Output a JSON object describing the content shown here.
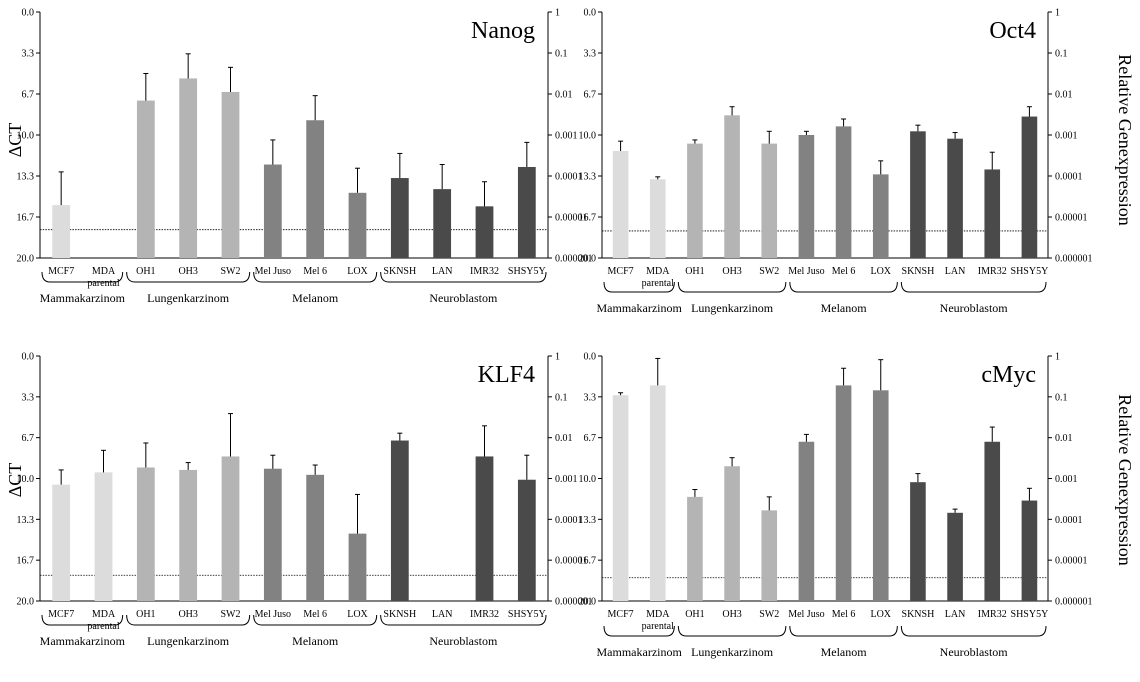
{
  "y_axis_title": "ΔCT",
  "y2_axis_title": "Relative Genexpression",
  "colors": {
    "Mammakarzinom": "#dcdcdc",
    "Lungenkarzinom": "#b4b4b4",
    "Melanom": "#828282",
    "Neuroblastom": "#4a4a4a",
    "error_bar": "#000000",
    "threshold": "#000000"
  },
  "chart_data": [
    {
      "type": "bar",
      "title": "Nanog",
      "categories": [
        "MCF7",
        "MDA parental",
        "OH1",
        "OH3",
        "SW2",
        "Mel Juso",
        "Mel 6",
        "LOX",
        "SKNSH",
        "LAN",
        "IMR32",
        "SHSY5Y"
      ],
      "values": [
        15.7,
        null,
        7.2,
        5.4,
        6.5,
        12.4,
        8.8,
        14.7,
        13.5,
        14.4,
        15.8,
        12.6
      ],
      "errors": [
        2.7,
        null,
        2.2,
        2.0,
        2.0,
        2.0,
        2.0,
        2.0,
        2.0,
        2.0,
        2.0,
        2.0
      ],
      "groups": [
        "Mammakarzinom",
        "Mammakarzinom",
        "Lungenkarzinom",
        "Lungenkarzinom",
        "Lungenkarzinom",
        "Melanom",
        "Melanom",
        "Melanom",
        "Neuroblastom",
        "Neuroblastom",
        "Neuroblastom",
        "Neuroblastom"
      ],
      "group_labels": [
        "Mammakarzinom",
        "Lungenkarzinom",
        "Melanom",
        "Neuroblastom"
      ],
      "ylim": [
        20.0,
        0.0
      ],
      "y_ticks": [
        "0.0",
        "3.3",
        "6.7",
        "10.0",
        "13.3",
        "16.7",
        "20.0"
      ],
      "y2_ticks": [
        "1",
        "0.1",
        "0.01",
        "0.001",
        "0.0001",
        "0.00001",
        "0.000001"
      ],
      "threshold": 17.7,
      "grid": false
    },
    {
      "type": "bar",
      "title": "Oct4",
      "categories": [
        "MCF7",
        "MDA parental",
        "OH1",
        "OH3",
        "SW2",
        "Mel Juso",
        "Mel 6",
        "LOX",
        "SKNSH",
        "LAN",
        "IMR32",
        "SHSY5Y"
      ],
      "values": [
        11.3,
        13.6,
        10.7,
        8.4,
        10.7,
        10.0,
        9.3,
        13.2,
        9.7,
        10.3,
        12.8,
        8.5
      ],
      "errors": [
        0.8,
        0.2,
        0.3,
        0.7,
        1.0,
        0.3,
        0.6,
        1.1,
        0.5,
        0.5,
        1.4,
        0.8
      ],
      "groups": [
        "Mammakarzinom",
        "Mammakarzinom",
        "Lungenkarzinom",
        "Lungenkarzinom",
        "Lungenkarzinom",
        "Melanom",
        "Melanom",
        "Melanom",
        "Neuroblastom",
        "Neuroblastom",
        "Neuroblastom",
        "Neuroblastom"
      ],
      "group_labels": [
        "Mammakarzinom",
        "Lungenkarzinom",
        "Melanom",
        "Neuroblastom"
      ],
      "ylim": [
        20.0,
        0.0
      ],
      "y_ticks": [
        "0.0",
        "3.3",
        "6.7",
        "10.0",
        "13.3",
        "16.7",
        "20.0"
      ],
      "y2_ticks": [
        "1",
        "0.1",
        "0.01",
        "0.001",
        "0.0001",
        "0.00001",
        "0.000001"
      ],
      "threshold": 17.8,
      "grid": false
    },
    {
      "type": "bar",
      "title": "KLF4",
      "categories": [
        "MCF7",
        "MDA parental",
        "OH1",
        "OH3",
        "SW2",
        "Mel Juso",
        "Mel 6",
        "LOX",
        "SKNSH",
        "LAN",
        "IMR32",
        "SHSY5Y"
      ],
      "values": [
        10.5,
        9.5,
        9.1,
        9.3,
        8.2,
        9.2,
        9.7,
        14.5,
        6.9,
        null,
        8.2,
        10.1
      ],
      "errors": [
        1.2,
        1.8,
        2.0,
        0.6,
        3.5,
        1.1,
        0.8,
        3.2,
        0.6,
        null,
        2.5,
        2.0
      ],
      "groups": [
        "Mammakarzinom",
        "Mammakarzinom",
        "Lungenkarzinom",
        "Lungenkarzinom",
        "Lungenkarzinom",
        "Melanom",
        "Melanom",
        "Melanom",
        "Neuroblastom",
        "Neuroblastom",
        "Neuroblastom",
        "Neuroblastom"
      ],
      "group_labels": [
        "Mammakarzinom",
        "Lungenkarzinom",
        "Melanom",
        "Neuroblastom"
      ],
      "ylim": [
        20.0,
        0.0
      ],
      "y_ticks": [
        "0.0",
        "3.3",
        "6.7",
        "10.0",
        "13.3",
        "16.7",
        "20.0"
      ],
      "y2_ticks": [
        "1",
        "0.1",
        "0.01",
        "0.001",
        "0.0001",
        "0.00001",
        "0.000001"
      ],
      "threshold": 17.9,
      "grid": false
    },
    {
      "type": "bar",
      "title": "cMyc",
      "categories": [
        "MCF7",
        "MDA parental",
        "OH1",
        "OH3",
        "SW2",
        "Mel Juso",
        "Mel 6",
        "LOX",
        "SKNSH",
        "LAN",
        "IMR32",
        "SHSY5Y"
      ],
      "values": [
        3.2,
        2.4,
        11.5,
        9.0,
        12.6,
        7.0,
        2.4,
        2.8,
        10.3,
        12.8,
        7.0,
        11.8
      ],
      "errors": [
        0.2,
        2.2,
        0.6,
        0.7,
        1.1,
        0.6,
        1.4,
        2.5,
        0.7,
        0.3,
        1.2,
        1.0
      ],
      "groups": [
        "Mammakarzinom",
        "Mammakarzinom",
        "Lungenkarzinom",
        "Lungenkarzinom",
        "Lungenkarzinom",
        "Melanom",
        "Melanom",
        "Melanom",
        "Neuroblastom",
        "Neuroblastom",
        "Neuroblastom",
        "Neuroblastom"
      ],
      "group_labels": [
        "Mammakarzinom",
        "Lungenkarzinom",
        "Melanom",
        "Neuroblastom"
      ],
      "ylim": [
        20.0,
        0.0
      ],
      "y_ticks": [
        "0.0",
        "3.3",
        "6.7",
        "10.0",
        "13.3",
        "16.7",
        "20.0"
      ],
      "y2_ticks": [
        "1",
        "0.1",
        "0.01",
        "0.001",
        "0.0001",
        "0.00001",
        "0.000001"
      ],
      "threshold": 18.1,
      "grid": false
    }
  ]
}
